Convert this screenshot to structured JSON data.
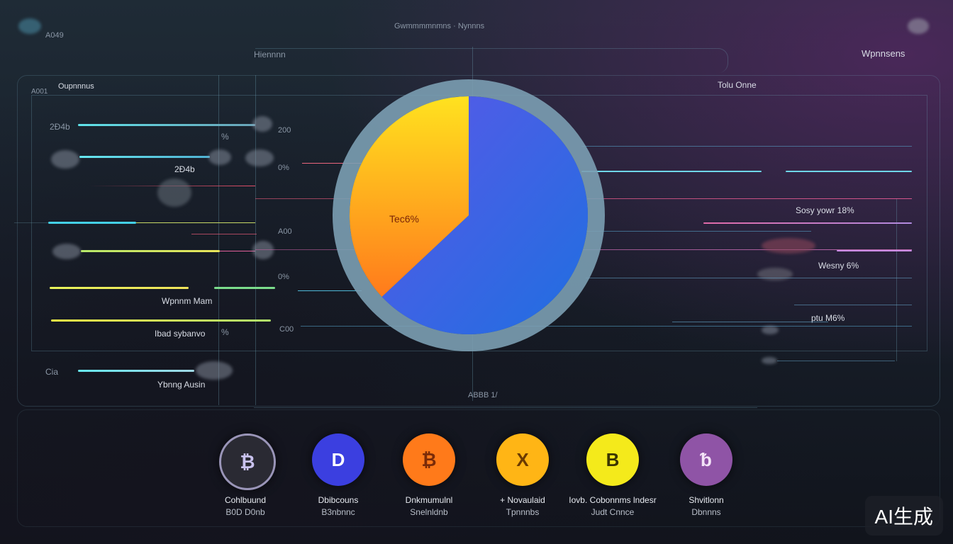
{
  "header": {
    "top_left": "A049",
    "top_center": "Gwmmmmnmns · Nynnns",
    "top_right": "Wpnnsens",
    "sub_left": "Hiennnn",
    "panel_left": "Oupnnnus",
    "panel_left_prefix": "A001",
    "panel_right": "Tolu Onne"
  },
  "left_labels": {
    "l1": "2Ð4b",
    "l2": "2Ð4b",
    "l3": "Wpnnm Mam",
    "l4": "Ibad sybanvo",
    "l5": "Ybnng Ausin",
    "l6": "Cia",
    "pct1": "%",
    "pct2": "%"
  },
  "axis_labels": {
    "a1": "200",
    "a2": "0%",
    "a3": "A00",
    "a4": "0%",
    "a5": "C00",
    "bottom": "ABBB 1/"
  },
  "right_labels": {
    "r1": "Sosy yowr 18%",
    "r2": "Wesny 6%",
    "r3": "ptu M6%"
  },
  "chart_data": {
    "type": "pie",
    "title": "",
    "slices": [
      {
        "label": "",
        "value": 63,
        "color": "#2f6ae6"
      },
      {
        "label": "Tec6%",
        "value": 37,
        "color": "#ffb020"
      }
    ],
    "slice_label_inside": "Tec6%"
  },
  "coins": [
    {
      "glyph": "₿",
      "name": "Cohlbuund",
      "sub": "B0D D0nb",
      "color": "#2a2a33",
      "fg": "#c9c2ee"
    },
    {
      "glyph": "D",
      "name": "Dbibcouns",
      "sub": "B3nbnnc",
      "color": "#3b3fe0",
      "fg": "#ffffff"
    },
    {
      "glyph": "₿",
      "name": "Dnkmumulnl",
      "sub": "Snelnldnb",
      "color": "#ff7a1a",
      "fg": "#7a2b08"
    },
    {
      "glyph": "X",
      "name": "+ Novaulaid",
      "sub": "Tpnnnbs",
      "color": "#ffb515",
      "fg": "#6b3a00"
    },
    {
      "glyph": "B",
      "name": "Iovb. Cobonnms lndesr",
      "sub": "Judt Cnnce",
      "color": "#f4ea1b",
      "fg": "#3b3600"
    },
    {
      "glyph": "ᵬ",
      "name": "Shvitlonn",
      "sub": "Dbnnns",
      "color": "#8f54a6",
      "fg": "#f3e3f7"
    }
  ],
  "watermark": "AI生成"
}
